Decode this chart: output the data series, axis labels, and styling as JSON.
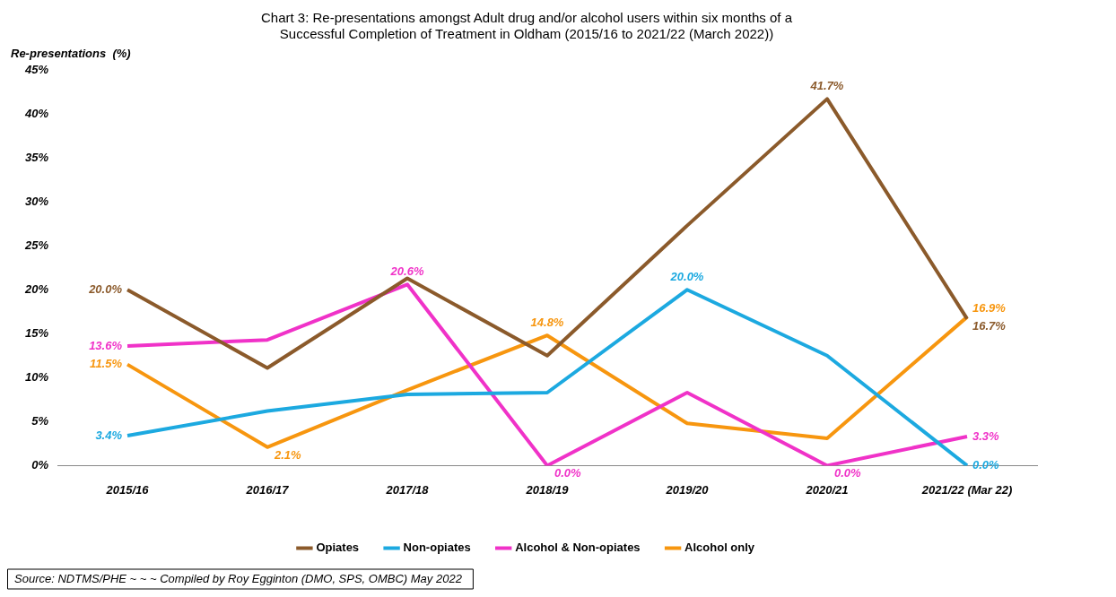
{
  "chart_data": {
    "type": "line",
    "title": "Chart 3: Re-presentations amongst Adult drug and/or alcohol users within six months of a Successful Completion of Treatment in Oldham (2015/16 to 2021/22 (March 2022))",
    "ylabel": "Re-presentations  (%)",
    "categories": [
      "2015/16",
      "2016/17",
      "2017/18",
      "2018/19",
      "2019/20",
      "2020/21",
      "2021/22 (Mar 22)"
    ],
    "series": [
      {
        "name": "Opiates",
        "color": "#8b5a2b",
        "values": [
          20.0,
          11.1,
          21.3,
          12.5,
          27.3,
          41.7,
          16.7
        ],
        "value_labels": [
          "20.0%",
          null,
          null,
          null,
          null,
          "41.7%",
          "16.7%"
        ]
      },
      {
        "name": "Non-opiates",
        "color": "#1ca9e0",
        "values": [
          3.4,
          6.2,
          8.1,
          8.3,
          20.0,
          12.5,
          0.0
        ],
        "value_labels": [
          "3.4%",
          null,
          null,
          null,
          "20.0%",
          null,
          "0.0%"
        ]
      },
      {
        "name": "Alcohol & Non-opiates",
        "color": "#f032c8",
        "values": [
          13.6,
          14.3,
          20.6,
          0.0,
          8.3,
          0.0,
          3.3
        ],
        "value_labels": [
          "13.6%",
          null,
          "20.6%",
          "0.0%",
          null,
          "0.0%",
          "3.3%"
        ]
      },
      {
        "name": "Alcohol only",
        "color": "#f7960f",
        "values": [
          11.5,
          2.1,
          8.6,
          14.8,
          4.8,
          3.1,
          16.9
        ],
        "value_labels": [
          "11.5%",
          "2.1%",
          null,
          "14.8%",
          null,
          null,
          "16.9%"
        ]
      }
    ],
    "ylim": [
      0,
      45
    ],
    "yticks": [
      {
        "value": 0,
        "label": "0%"
      },
      {
        "value": 5,
        "label": "5%"
      },
      {
        "value": 10,
        "label": "10%"
      },
      {
        "value": 15,
        "label": "15%"
      },
      {
        "value": 20,
        "label": "20%"
      },
      {
        "value": 25,
        "label": "25%"
      },
      {
        "value": 30,
        "label": "30%"
      },
      {
        "value": 35,
        "label": "35%"
      },
      {
        "value": 40,
        "label": "40%"
      },
      {
        "value": 45,
        "label": "45%"
      }
    ],
    "grid": false,
    "legend": "bottom",
    "marker": "none",
    "line_style": "solid",
    "annotations": [
      "Source: NDTMS/PHE ~ ~ ~ Compiled by Roy Egginton (DMO, SPS, OMBC) May 2022"
    ]
  }
}
